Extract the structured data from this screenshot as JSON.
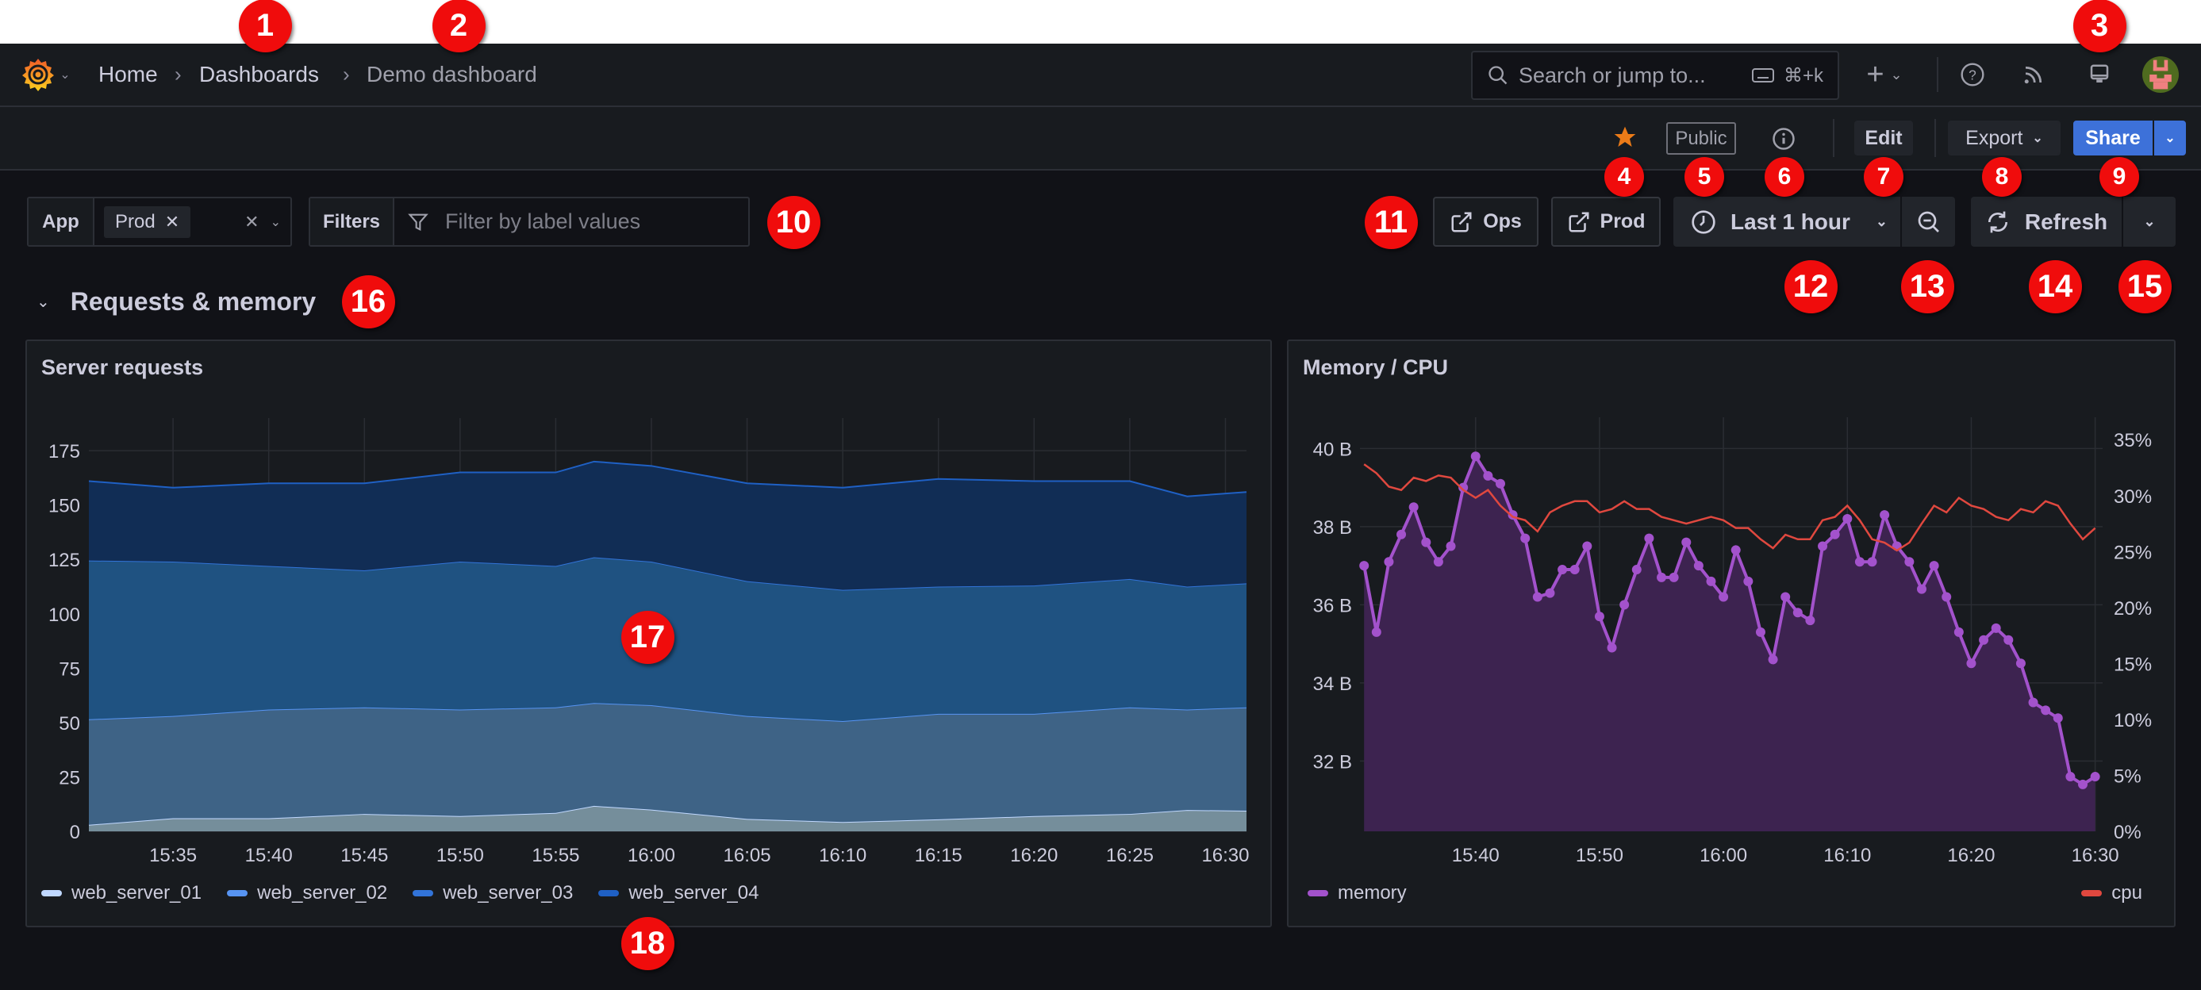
{
  "nav": {
    "breadcrumb": [
      "Home",
      "Dashboards",
      "Demo dashboard"
    ],
    "search_placeholder": "Search or jump to...",
    "search_shortcut": "⌘+k",
    "icons": [
      "grafana-logo",
      "plus-icon",
      "help-icon",
      "rss-icon",
      "monitor-icon",
      "avatar"
    ]
  },
  "toolbar": {
    "starred": true,
    "public_label": "Public",
    "edit_label": "Edit",
    "export_label": "Export",
    "share_label": "Share",
    "colors": {
      "star": "#eb7b18",
      "share": "#3d71d9"
    }
  },
  "filters": {
    "app_label": "App",
    "app_value": "Prod",
    "filters_label": "Filters",
    "filters_placeholder": "Filter by label values"
  },
  "controls": {
    "links": [
      "Ops",
      "Prod"
    ],
    "time_range": "Last 1 hour",
    "refresh_label": "Refresh"
  },
  "section": {
    "title": "Requests & memory",
    "expanded": true
  },
  "annotations": [
    "1",
    "2",
    "3",
    "4",
    "5",
    "6",
    "7",
    "8",
    "9",
    "10",
    "11",
    "12",
    "13",
    "14",
    "15",
    "16",
    "17",
    "18"
  ],
  "chart_data": [
    {
      "type": "area",
      "stacked": true,
      "title": "Server requests",
      "xlim": [
        "15:30:36",
        "16:31:06"
      ],
      "ylim": [
        0,
        190
      ],
      "x_ticks": [
        "15:35",
        "15:40",
        "15:45",
        "15:50",
        "15:55",
        "16:00",
        "16:05",
        "16:10",
        "16:15",
        "16:20",
        "16:25",
        "16:30"
      ],
      "y_ticks": [
        "0",
        "25",
        "50",
        "75",
        "100",
        "125",
        "150",
        "175"
      ],
      "grid": true,
      "legend": "bottom-left",
      "x": [
        "15:31",
        "15:35",
        "15:40",
        "15:45",
        "15:50",
        "15:55",
        "15:57",
        "16:00",
        "16:05",
        "16:10",
        "16:15",
        "16:20",
        "16:25",
        "16:28",
        "16:30"
      ],
      "series": [
        {
          "name": "web_server_01",
          "color": "#c0d8ff",
          "fill": "#758e9b",
          "values": [
            3,
            6,
            6,
            8,
            7,
            8.5,
            11.7,
            10,
            5.7,
            4.3,
            5.5,
            7,
            8,
            9.8,
            9.5
          ]
        },
        {
          "name": "web_server_02",
          "color": "#5794f2",
          "fill": "#3e6386",
          "values": [
            48.5,
            47,
            50,
            49,
            49,
            48.5,
            47.3,
            48,
            47.3,
            46.4,
            48.5,
            47,
            49,
            46.2,
            47.5
          ]
        },
        {
          "name": "web_server_03",
          "color": "#3274d9",
          "fill": "#1f5281",
          "values": [
            73,
            71,
            66,
            63,
            68,
            65,
            67,
            66,
            62,
            60.3,
            58.5,
            59,
            59,
            56.5,
            57
          ]
        },
        {
          "name": "web_server_04",
          "color": "#1f60c4",
          "fill": "#112d55",
          "values": [
            36.5,
            34,
            38,
            40,
            41,
            43,
            44,
            44,
            45,
            47,
            49.5,
            48,
            45,
            41.5,
            42
          ]
        }
      ]
    },
    {
      "type": "line",
      "title": "Memory / CPU",
      "xlim": [
        "15:30:40",
        "16:30:36"
      ],
      "x_ticks": [
        "15:40",
        "15:50",
        "16:00",
        "16:10",
        "16:20",
        "16:30"
      ],
      "y_left": {
        "ticks": [
          "32 B",
          "34 B",
          "36 B",
          "38 B",
          "40 B"
        ],
        "tick_values": [
          32,
          34,
          36,
          38,
          40
        ],
        "range": [
          30.2,
          40.8
        ]
      },
      "y_right": {
        "ticks": [
          "0%",
          "5%",
          "10%",
          "15%",
          "20%",
          "25%",
          "30%",
          "35%"
        ],
        "tick_values": [
          0,
          5,
          10,
          15,
          20,
          25,
          30,
          35
        ],
        "range": [
          0,
          37
        ]
      },
      "grid": true,
      "legend": "bottom",
      "x": [
        "15:31",
        "15:32",
        "15:33",
        "15:34",
        "15:35",
        "15:36",
        "15:37",
        "15:38",
        "15:39",
        "15:40",
        "15:41",
        "15:42",
        "15:43",
        "15:44",
        "15:45",
        "15:46",
        "15:47",
        "15:48",
        "15:49",
        "15:50",
        "15:51",
        "15:52",
        "15:53",
        "15:54",
        "15:55",
        "15:56",
        "15:57",
        "15:58",
        "15:59",
        "16:00",
        "16:01",
        "16:02",
        "16:03",
        "16:04",
        "16:05",
        "16:06",
        "16:07",
        "16:08",
        "16:09",
        "16:10",
        "16:11",
        "16:12",
        "16:13",
        "16:14",
        "16:15",
        "16:16",
        "16:17",
        "16:18",
        "16:19",
        "16:20",
        "16:21",
        "16:22",
        "16:23",
        "16:24",
        "16:25",
        "16:26",
        "16:27",
        "16:28",
        "16:29",
        "16:30"
      ],
      "series": [
        {
          "name": "memory",
          "axis": "left",
          "unit": "B",
          "color": "#a352cc",
          "fill": "#3d2350",
          "values": [
            37.0,
            35.3,
            37.1,
            37.8,
            38.5,
            37.6,
            37.1,
            37.5,
            39.0,
            39.8,
            39.3,
            39.1,
            38.3,
            37.7,
            36.2,
            36.3,
            36.9,
            36.9,
            37.5,
            35.7,
            34.9,
            36.0,
            36.9,
            37.7,
            36.7,
            36.7,
            37.6,
            37.0,
            36.6,
            36.2,
            37.4,
            36.6,
            35.3,
            34.6,
            36.2,
            35.8,
            35.6,
            37.5,
            37.8,
            38.2,
            37.1,
            37.1,
            38.3,
            37.5,
            37.1,
            36.4,
            37.0,
            36.2,
            35.3,
            34.5,
            35.1,
            35.4,
            35.1,
            34.5,
            33.5,
            33.3,
            33.1,
            31.6,
            31.4,
            31.6
          ]
        },
        {
          "name": "cpu",
          "axis": "right",
          "unit": "%",
          "color": "#e0483f",
          "values": [
            32.8,
            32.0,
            30.8,
            30.5,
            31.6,
            31.3,
            31.8,
            31.6,
            30.5,
            29.8,
            30.5,
            29.1,
            28.1,
            27.8,
            26.8,
            28.5,
            29.1,
            29.5,
            29.5,
            28.5,
            28.8,
            29.5,
            28.8,
            28.8,
            28.1,
            27.8,
            27.5,
            27.8,
            28.1,
            27.8,
            27.1,
            27.1,
            26.1,
            25.3,
            26.5,
            26.1,
            26.1,
            27.8,
            28.1,
            29.1,
            27.8,
            26.1,
            25.8,
            25.1,
            25.8,
            27.5,
            29.1,
            28.5,
            29.8,
            29.1,
            28.8,
            28.1,
            27.8,
            28.8,
            28.5,
            29.5,
            29.1,
            27.5,
            26.1,
            27.1
          ]
        }
      ]
    }
  ]
}
